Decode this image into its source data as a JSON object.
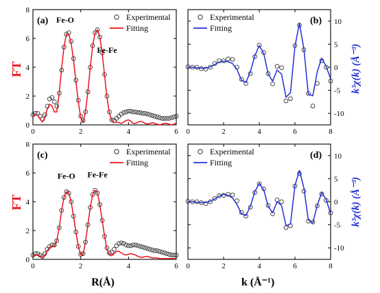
{
  "chart_data": [
    {
      "panel": "(a)",
      "type": "line",
      "xlabel": "",
      "ylabel": "FT",
      "xlim": [
        0,
        6
      ],
      "ylim": [
        0,
        8
      ],
      "xticks": [
        "0",
        "2",
        "4",
        "6"
      ],
      "yticks": [
        "0",
        "2",
        "4",
        "6",
        "8"
      ],
      "annotations": [
        "Fe-O",
        "Fe-Fe"
      ],
      "legend": [
        "Experimental",
        "Fitting"
      ],
      "legend_position": "top-right",
      "colors": {
        "fit": "#e8111b",
        "exp": "#333333"
      },
      "series": [
        {
          "name": "Experimental",
          "marker": "circle",
          "x": [
            0,
            0.1,
            0.2,
            0.3,
            0.4,
            0.5,
            0.6,
            0.7,
            0.8,
            0.9,
            1.0,
            1.1,
            1.2,
            1.3,
            1.4,
            1.5,
            1.6,
            1.7,
            1.8,
            1.9,
            2.0,
            2.1,
            2.2,
            2.3,
            2.4,
            2.5,
            2.6,
            2.7,
            2.8,
            2.9,
            3.0,
            3.1,
            3.2,
            3.3,
            3.4,
            3.5,
            3.6,
            3.7,
            3.8,
            3.9,
            4.0,
            4.1,
            4.2,
            4.3,
            4.4,
            4.5,
            4.6,
            4.7,
            4.8,
            4.9,
            5.0,
            5.1,
            5.2,
            5.3,
            5.4,
            5.5,
            5.6,
            5.7,
            5.8,
            5.9,
            6.0
          ],
          "y": [
            0.7,
            0.8,
            0.8,
            0.6,
            0.4,
            0.7,
            1.3,
            1.8,
            1.9,
            1.6,
            1.3,
            2.2,
            3.8,
            5.4,
            6.3,
            6.4,
            5.8,
            4.6,
            3.1,
            1.7,
            0.6,
            0.3,
            0.9,
            2.3,
            4.0,
            5.5,
            6.4,
            6.6,
            6.1,
            5.0,
            3.5,
            2.0,
            0.9,
            0.35,
            0.3,
            0.45,
            0.6,
            0.75,
            0.85,
            0.9,
            0.95,
            0.95,
            0.9,
            0.9,
            0.85,
            0.85,
            0.8,
            0.8,
            0.75,
            0.7,
            0.65,
            0.6,
            0.55,
            0.5,
            0.45,
            0.45,
            0.45,
            0.45,
            0.5,
            0.55,
            0.6
          ]
        },
        {
          "name": "Fitting",
          "x": [
            0,
            0.1,
            0.2,
            0.3,
            0.4,
            0.5,
            0.6,
            0.7,
            0.8,
            0.9,
            1.0,
            1.1,
            1.2,
            1.3,
            1.4,
            1.5,
            1.6,
            1.7,
            1.8,
            1.9,
            2.0,
            2.1,
            2.2,
            2.3,
            2.4,
            2.5,
            2.6,
            2.7,
            2.8,
            2.9,
            3.0,
            3.1,
            3.2,
            3.3,
            3.4,
            3.5,
            3.6,
            3.7,
            3.8,
            3.9,
            4.0,
            4.1,
            4.2,
            4.3,
            4.4,
            4.5,
            4.6,
            4.7,
            4.8,
            4.9,
            5.0,
            5.1,
            5.2,
            5.3,
            5.4,
            5.5,
            5.6,
            5.7,
            5.8,
            5.9,
            6.0
          ],
          "y": [
            0.55,
            0.7,
            0.65,
            0.4,
            0.2,
            0.5,
            1.1,
            1.45,
            1.3,
            0.9,
            0.9,
            2.2,
            3.9,
            5.4,
            6.3,
            6.3,
            5.7,
            4.5,
            3.0,
            1.6,
            0.5,
            0.2,
            0.9,
            2.3,
            4.0,
            5.5,
            6.4,
            6.6,
            6.1,
            5.0,
            3.4,
            1.9,
            0.8,
            0.3,
            0.15,
            0.2,
            0.15,
            0.1,
            0.2,
            0.3,
            0.35,
            0.25,
            0.1,
            0.1,
            0.2,
            0.25,
            0.2,
            0.1,
            0.05,
            0.1,
            0.15,
            0.1,
            0.05,
            0.0,
            0.05,
            0.1,
            0.1,
            0.05,
            0.0,
            0.05,
            0.1
          ]
        }
      ]
    },
    {
      "panel": "(b)",
      "type": "line",
      "xlabel": "",
      "ylabel": "k³χ(k) (Å⁻³)",
      "xlim": [
        0,
        8
      ],
      "ylim": [
        -12.5,
        12.5
      ],
      "xticks": [
        "0",
        "2",
        "4",
        "6",
        "8"
      ],
      "yticks": [
        "-10",
        "-5",
        "0",
        "5",
        "10"
      ],
      "legend": [
        "Experimental",
        "Fitting"
      ],
      "legend_position": "top-left",
      "colors": {
        "fit": "#1f2fd6",
        "exp": "#333333"
      },
      "series": [
        {
          "name": "Experimental",
          "marker": "circle",
          "x": [
            0,
            0.25,
            0.5,
            0.75,
            1.0,
            1.25,
            1.5,
            1.75,
            2.0,
            2.25,
            2.5,
            2.75,
            3.0,
            3.25,
            3.5,
            3.75,
            4.0,
            4.25,
            4.5,
            4.75,
            5.0,
            5.25,
            5.5,
            5.75,
            6.0,
            6.25,
            6.5,
            6.75,
            7.0,
            7.25,
            7.5,
            7.75,
            8.0
          ],
          "y": [
            0.1,
            0.0,
            0.0,
            -0.3,
            -0.4,
            0.0,
            0.8,
            1.4,
            1.4,
            1.8,
            1.7,
            0.0,
            -2.6,
            -3.5,
            -1.4,
            2.3,
            4.8,
            3.2,
            -1.4,
            -3.6,
            0.2,
            -0.1,
            -7.3,
            -6.8,
            4.7,
            9.1,
            3.8,
            -5.7,
            -8.4,
            -3.5,
            1.4,
            0.0,
            -3.0
          ]
        },
        {
          "name": "Fitting",
          "x": [
            0,
            0.25,
            0.5,
            0.75,
            1.0,
            1.25,
            1.5,
            1.75,
            2.0,
            2.25,
            2.5,
            2.75,
            3.0,
            3.25,
            3.5,
            3.75,
            4.0,
            4.25,
            4.5,
            4.75,
            5.0,
            5.25,
            5.5,
            5.75,
            6.0,
            6.25,
            6.5,
            6.75,
            7.0,
            7.25,
            7.5,
            7.75,
            8.0
          ],
          "y": [
            0.0,
            0.0,
            -0.1,
            -0.2,
            -0.2,
            0.1,
            0.6,
            1.1,
            1.3,
            1.2,
            0.8,
            -0.5,
            -2.8,
            -3.3,
            -1.0,
            2.5,
            4.7,
            3.0,
            -1.5,
            -3.0,
            -0.6,
            -1.5,
            -6.5,
            -5.5,
            4.5,
            9.6,
            4.0,
            -5.8,
            -6.2,
            -1.0,
            2.0,
            0.2,
            -2.5
          ]
        }
      ]
    },
    {
      "panel": "(c)",
      "type": "line",
      "xlabel": "R(Å)",
      "ylabel": "FT",
      "xlim": [
        0,
        6
      ],
      "ylim": [
        0,
        8
      ],
      "xticks": [
        "0",
        "2",
        "4",
        "6"
      ],
      "yticks": [
        "0",
        "2",
        "4",
        "6",
        "8"
      ],
      "annotations": [
        "Fe-O",
        "Fe-Fe"
      ],
      "legend": [
        "Experimental",
        "Fitting"
      ],
      "legend_position": "top-right",
      "colors": {
        "fit": "#e8111b",
        "exp": "#333333"
      },
      "series": [
        {
          "name": "Experimental",
          "marker": "circle",
          "x": [
            0,
            0.1,
            0.2,
            0.3,
            0.4,
            0.5,
            0.6,
            0.7,
            0.8,
            0.9,
            1.0,
            1.1,
            1.2,
            1.3,
            1.4,
            1.5,
            1.6,
            1.7,
            1.8,
            1.9,
            2.0,
            2.1,
            2.2,
            2.3,
            2.4,
            2.5,
            2.6,
            2.7,
            2.8,
            2.9,
            3.0,
            3.1,
            3.2,
            3.3,
            3.4,
            3.5,
            3.6,
            3.7,
            3.8,
            3.9,
            4.0,
            4.1,
            4.2,
            4.3,
            4.4,
            4.5,
            4.6,
            4.7,
            4.8,
            4.9,
            5.0,
            5.1,
            5.2,
            5.3,
            5.4,
            5.5,
            5.6,
            5.7,
            5.8,
            5.9,
            6.0
          ],
          "y": [
            0.3,
            0.4,
            0.4,
            0.3,
            0.2,
            0.4,
            0.7,
            0.9,
            1.0,
            1.0,
            1.3,
            2.2,
            3.4,
            4.3,
            4.7,
            4.6,
            4.0,
            3.0,
            1.9,
            0.9,
            0.35,
            0.4,
            1.2,
            2.4,
            3.6,
            4.5,
            4.8,
            4.6,
            3.8,
            2.7,
            1.6,
            0.8,
            0.45,
            0.5,
            0.7,
            0.95,
            1.1,
            1.15,
            1.1,
            1.0,
            0.95,
            0.95,
            1.0,
            1.0,
            0.95,
            0.9,
            0.85,
            0.8,
            0.75,
            0.7,
            0.65,
            0.6,
            0.6,
            0.55,
            0.5,
            0.45,
            0.4,
            0.35,
            0.3,
            0.3,
            0.3
          ]
        },
        {
          "name": "Fitting",
          "x": [
            0,
            0.1,
            0.2,
            0.3,
            0.4,
            0.5,
            0.6,
            0.7,
            0.8,
            0.9,
            1.0,
            1.1,
            1.2,
            1.3,
            1.4,
            1.5,
            1.6,
            1.7,
            1.8,
            1.9,
            2.0,
            2.1,
            2.2,
            2.3,
            2.4,
            2.5,
            2.6,
            2.7,
            2.8,
            2.9,
            3.0,
            3.1,
            3.2,
            3.3,
            3.4,
            3.5,
            3.6,
            3.7,
            3.8,
            3.9,
            4.0,
            4.1,
            4.2,
            4.3,
            4.4,
            4.5,
            4.6,
            4.7,
            4.8,
            4.9,
            5.0,
            5.1,
            5.2,
            5.3,
            5.4,
            5.5,
            5.6,
            5.7,
            5.8,
            5.9,
            6.0
          ],
          "y": [
            0.2,
            0.3,
            0.3,
            0.2,
            0.15,
            0.3,
            0.6,
            0.85,
            0.9,
            0.9,
            1.3,
            2.2,
            3.4,
            4.3,
            4.7,
            4.6,
            4.0,
            3.0,
            1.9,
            0.9,
            0.3,
            0.35,
            1.2,
            2.4,
            3.6,
            4.5,
            4.8,
            4.6,
            3.8,
            2.7,
            1.6,
            0.7,
            0.3,
            0.25,
            0.4,
            0.55,
            0.55,
            0.45,
            0.35,
            0.3,
            0.35,
            0.4,
            0.35,
            0.3,
            0.2,
            0.15,
            0.15,
            0.2,
            0.2,
            0.15,
            0.1,
            0.1,
            0.1,
            0.05,
            0.05,
            0.05,
            0.05,
            0.05,
            0.05,
            0.05,
            0.05
          ]
        }
      ]
    },
    {
      "panel": "(d)",
      "type": "line",
      "xlabel": "k (Å⁻¹)",
      "ylabel": "k³χ(k) (Å⁻³)",
      "xlim": [
        0,
        8
      ],
      "ylim": [
        -12.5,
        12.5
      ],
      "xticks": [
        "0",
        "2",
        "4",
        "6",
        "8"
      ],
      "yticks": [
        "-10",
        "-5",
        "0",
        "5",
        "10"
      ],
      "legend": [
        "Experimental",
        "Fitting"
      ],
      "legend_position": "top-left",
      "colors": {
        "fit": "#1f2fd6",
        "exp": "#333333"
      },
      "series": [
        {
          "name": "Experimental",
          "marker": "circle",
          "x": [
            0,
            0.25,
            0.5,
            0.75,
            1.0,
            1.25,
            1.5,
            1.75,
            2.0,
            2.25,
            2.5,
            2.75,
            3.0,
            3.25,
            3.5,
            3.75,
            4.0,
            4.25,
            4.5,
            4.75,
            5.0,
            5.25,
            5.5,
            5.75,
            6.0,
            6.25,
            6.5,
            6.75,
            7.0,
            7.25,
            7.5,
            7.75,
            8.0
          ],
          "y": [
            0.1,
            0.0,
            0.0,
            -0.2,
            -0.4,
            0.0,
            0.7,
            1.3,
            1.4,
            1.6,
            1.5,
            0.2,
            -2.3,
            -3.1,
            -1.2,
            2.0,
            3.9,
            2.8,
            -0.8,
            -2.6,
            0.4,
            0.0,
            -5.6,
            -5.2,
            3.4,
            6.1,
            2.3,
            -4.2,
            -4.4,
            -0.9,
            1.7,
            0.3,
            -2.4
          ]
        },
        {
          "name": "Fitting",
          "x": [
            0,
            0.25,
            0.5,
            0.75,
            1.0,
            1.25,
            1.5,
            1.75,
            2.0,
            2.25,
            2.5,
            2.75,
            3.0,
            3.25,
            3.5,
            3.75,
            4.0,
            4.25,
            4.5,
            4.75,
            5.0,
            5.25,
            5.5,
            5.75,
            6.0,
            6.25,
            6.5,
            6.75,
            7.0,
            7.25,
            7.5,
            7.75,
            8.0
          ],
          "y": [
            0.0,
            0.0,
            -0.1,
            -0.2,
            -0.2,
            0.1,
            0.6,
            1.2,
            1.6,
            1.4,
            0.8,
            -0.6,
            -2.6,
            -3.0,
            -1.0,
            2.2,
            4.0,
            2.6,
            -1.0,
            -2.4,
            0.0,
            -0.8,
            -5.2,
            -4.8,
            3.5,
            6.8,
            3.0,
            -4.0,
            -4.6,
            -0.8,
            2.0,
            0.5,
            -2.6
          ]
        }
      ]
    }
  ]
}
